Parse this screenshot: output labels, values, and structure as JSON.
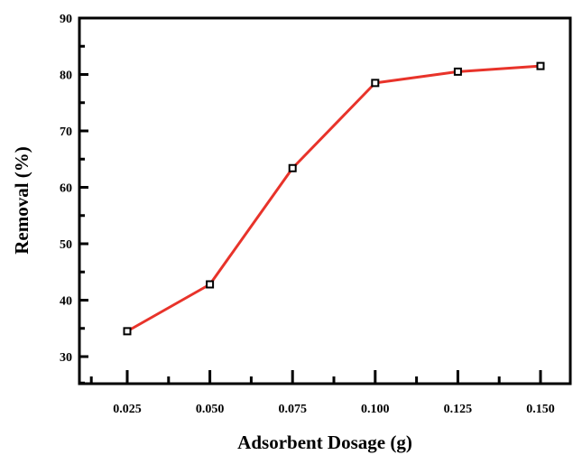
{
  "chart_data": {
    "type": "line",
    "title": "",
    "xlabel": "Adsorbent Dosage (g)",
    "ylabel": "Removal (%)",
    "xlim": [
      0.0125,
      0.1625
    ],
    "ylim": [
      25,
      90
    ],
    "x_ticks": [
      0.025,
      0.05,
      0.075,
      0.1,
      0.125,
      0.15
    ],
    "x_tick_labels": [
      "0.025",
      "0.050",
      "0.075",
      "0.100",
      "0.125",
      "0.150"
    ],
    "y_ticks": [
      30,
      40,
      50,
      60,
      70,
      80,
      90
    ],
    "y_tick_labels": [
      "30",
      "40",
      "50",
      "60",
      "70",
      "80",
      "90"
    ],
    "grid": false,
    "legend": "none",
    "series": [
      {
        "x": [
          0.025,
          0.05,
          0.075,
          0.1,
          0.125,
          0.15
        ],
        "y": [
          34.5,
          42.8,
          63.4,
          78.5,
          80.5,
          81.5
        ],
        "color": "#e8332a",
        "marker": "open-square"
      }
    ]
  }
}
